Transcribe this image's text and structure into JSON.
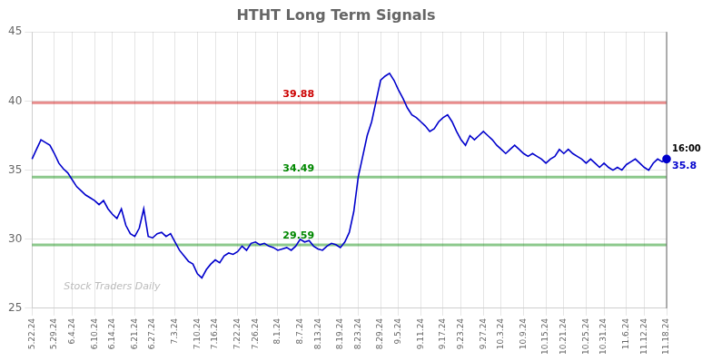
{
  "chart_data": {
    "type": "line",
    "title": "HTHT Long Term Signals",
    "categories": [
      "5.22.24",
      null,
      null,
      null,
      null,
      "5.29.24",
      null,
      null,
      null,
      "6.4.24",
      null,
      null,
      null,
      null,
      "6.10.24",
      null,
      null,
      null,
      "6.14.24",
      null,
      null,
      null,
      null,
      "6.21.24",
      null,
      null,
      null,
      "6.27.24",
      null,
      null,
      null,
      null,
      "7.3.24",
      null,
      null,
      null,
      null,
      "7.10.24",
      null,
      null,
      null,
      "7.16.24",
      null,
      null,
      null,
      null,
      "7.22.24",
      null,
      null,
      null,
      "7.26.24",
      null,
      null,
      null,
      null,
      "8.1.24",
      null,
      null,
      null,
      null,
      "8.7.24",
      null,
      null,
      null,
      "8.13.24",
      null,
      null,
      null,
      null,
      "8.19.24",
      null,
      null,
      null,
      "8.23.24",
      null,
      null,
      null,
      null,
      "8.29.24",
      null,
      null,
      null,
      "9.5.24",
      null,
      null,
      null,
      null,
      "9.11.24",
      null,
      null,
      null,
      null,
      "9.17.24",
      null,
      null,
      null,
      "9.23.24",
      null,
      null,
      null,
      null,
      "9.27.24",
      null,
      null,
      null,
      "10.3.24",
      null,
      null,
      null,
      null,
      "10.9.24",
      null,
      null,
      null,
      null,
      "10.15.24",
      null,
      null,
      null,
      "10.21.24",
      null,
      null,
      null,
      null,
      "10.25.24",
      null,
      null,
      null,
      "10.31.24",
      null,
      null,
      null,
      null,
      "11.6.24",
      null,
      null,
      null,
      "11.12.24",
      null,
      null,
      null,
      null,
      "11.18.24"
    ],
    "values": [
      35.8,
      36.5,
      37.2,
      37.0,
      36.8,
      36.2,
      35.5,
      35.1,
      34.8,
      34.3,
      33.8,
      33.5,
      33.2,
      33.0,
      32.8,
      32.5,
      32.8,
      32.2,
      31.8,
      31.5,
      32.2,
      31.0,
      30.4,
      30.2,
      30.8,
      32.2,
      30.2,
      30.1,
      30.4,
      30.5,
      30.2,
      30.4,
      29.8,
      29.2,
      28.8,
      28.4,
      28.2,
      27.5,
      27.2,
      27.8,
      28.2,
      28.5,
      28.3,
      28.8,
      29.0,
      28.9,
      29.1,
      29.5,
      29.2,
      29.7,
      29.8,
      29.6,
      29.7,
      29.5,
      29.4,
      29.2,
      29.3,
      29.4,
      29.2,
      29.5,
      30.0,
      29.8,
      29.9,
      29.5,
      29.3,
      29.2,
      29.5,
      29.7,
      29.6,
      29.4,
      29.8,
      30.5,
      32.0,
      34.5,
      36.0,
      37.5,
      38.5,
      40.0,
      41.5,
      41.8,
      42.0,
      41.5,
      40.8,
      40.2,
      39.5,
      39.0,
      38.8,
      38.5,
      38.2,
      37.8,
      38.0,
      38.5,
      38.8,
      39.0,
      38.5,
      37.8,
      37.2,
      36.8,
      37.5,
      37.2,
      37.5,
      37.8,
      37.5,
      37.2,
      36.8,
      36.5,
      36.2,
      36.5,
      36.8,
      36.5,
      36.2,
      36.0,
      36.2,
      36.0,
      35.8,
      35.5,
      35.8,
      36.0,
      36.5,
      36.2,
      36.5,
      36.2,
      36.0,
      35.8,
      35.5,
      35.8,
      35.5,
      35.2,
      35.5,
      35.2,
      35.0,
      35.2,
      35.0,
      35.4,
      35.6,
      35.8,
      35.5,
      35.2,
      35.0,
      35.5,
      35.8,
      35.6,
      35.8
    ],
    "color": "#0000cc",
    "ylim": [
      25,
      45
    ],
    "yticks": [
      25,
      30,
      35,
      40,
      45
    ],
    "grid": true,
    "annotations": [
      {
        "type": "hline",
        "y": 39.88,
        "text": "39.88",
        "color": "#cc0000"
      },
      {
        "type": "hline",
        "y": 34.49,
        "text": "34.49",
        "color": "#008800"
      },
      {
        "type": "hline",
        "y": 29.59,
        "text": "29.59",
        "color": "#008800"
      },
      {
        "type": "end_label",
        "text": "16:00"
      },
      {
        "type": "end_label",
        "text": "35.8",
        "color": "#0000cc"
      },
      {
        "type": "watermark",
        "text": "Stock Traders Daily",
        "color": "#bbbbbb"
      }
    ]
  }
}
